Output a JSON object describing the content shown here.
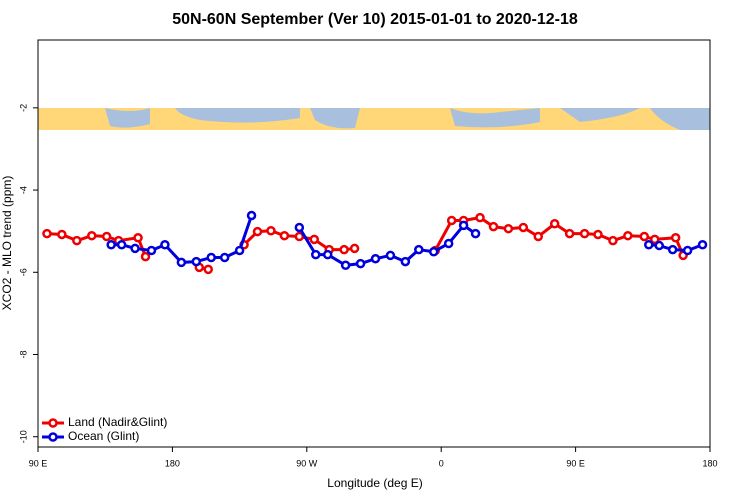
{
  "chart_data": {
    "type": "line",
    "title": "50N-60N September (Ver 10)   2015-01-01 to 2020-12-18",
    "x_label": "Longitude (deg E)",
    "y_label": "XCO2 - MLO trend (ppm)",
    "xlim": [
      90,
      540
    ],
    "xticks": [
      {
        "value": 90,
        "label": "90 E"
      },
      180,
      {
        "value": 270,
        "label": "90 W"
      },
      {
        "value": 360,
        "label": "0"
      },
      {
        "value": 450,
        "label": "90 E"
      },
      {
        "value": 540,
        "label": "180"
      }
    ],
    "ylim": [
      -10.25,
      -0.35
    ],
    "yticks": [
      -10,
      -8,
      -6,
      -4,
      -2
    ],
    "legend": "bottom-left",
    "series": [
      {
        "name": "Land (Nadir&Glint)",
        "color": "#ee0000",
        "x": [
          96,
          106,
          116,
          126,
          136,
          144,
          157,
          162,
          null,
          198,
          204,
          null,
          228,
          237,
          246,
          255,
          265,
          275,
          285,
          295,
          302,
          null,
          356,
          367,
          375,
          386,
          395,
          405,
          415,
          425,
          436,
          446,
          456,
          465,
          475,
          485,
          496,
          503,
          517,
          522
        ],
        "values": [
          -5.06,
          -5.08,
          -5.23,
          -5.11,
          -5.13,
          -5.23,
          -5.16,
          -5.62,
          null,
          -5.88,
          -5.93,
          null,
          -5.33,
          -5.01,
          -4.99,
          -5.11,
          -5.13,
          -5.2,
          -5.45,
          -5.45,
          -5.42,
          null,
          -5.47,
          -4.74,
          -4.74,
          -4.67,
          -4.89,
          -4.94,
          -4.91,
          -5.13,
          -4.82,
          -5.06,
          -5.06,
          -5.08,
          -5.23,
          -5.11,
          -5.13,
          -5.2,
          -5.16,
          -5.59
        ]
      },
      {
        "name": "Ocean (Glint)",
        "color": "#0000dd",
        "x": [
          139,
          146,
          155,
          166,
          175,
          186,
          196,
          206,
          215,
          225,
          233,
          null,
          265,
          276,
          284,
          296,
          306,
          316,
          326,
          336,
          345,
          355,
          365,
          375,
          383,
          null,
          499,
          506,
          515,
          525,
          535
        ],
        "values": [
          -5.33,
          -5.33,
          -5.42,
          -5.47,
          -5.33,
          -5.76,
          -5.74,
          -5.64,
          -5.64,
          -5.47,
          -4.62,
          null,
          -4.91,
          -5.57,
          -5.57,
          -5.83,
          -5.79,
          -5.67,
          -5.59,
          -5.74,
          -5.45,
          -5.5,
          -5.3,
          -4.86,
          -5.06,
          null,
          -5.33,
          -5.35,
          -5.45,
          -5.47,
          -5.33
        ]
      }
    ]
  }
}
